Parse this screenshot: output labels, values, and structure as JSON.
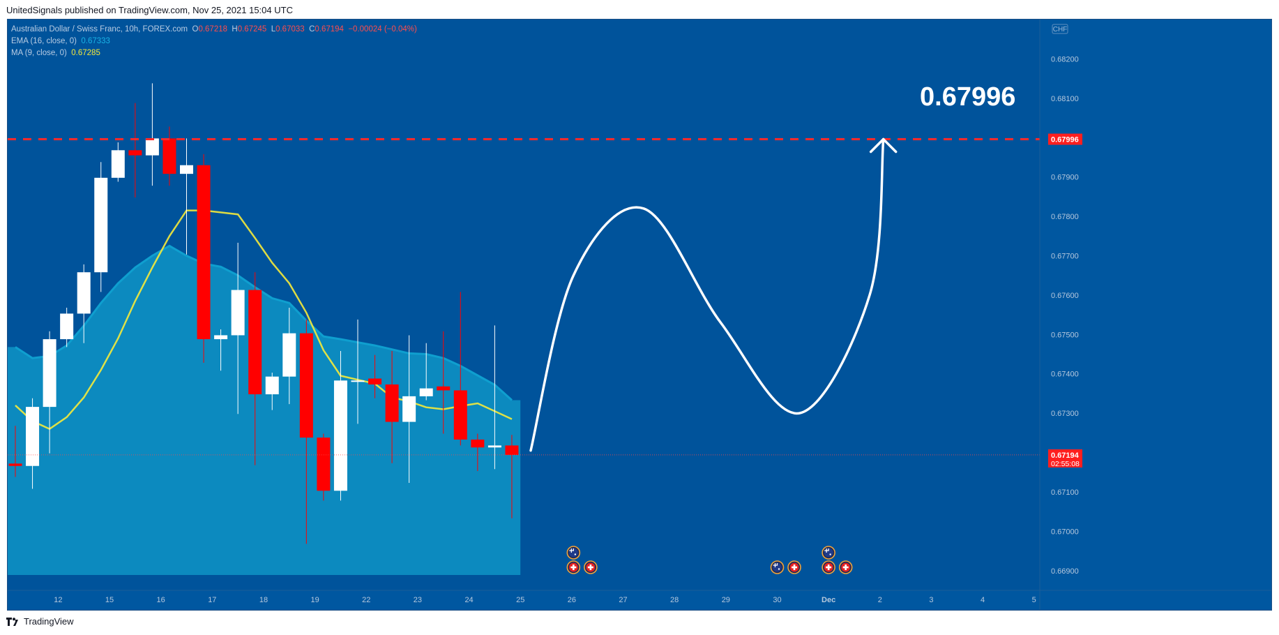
{
  "header": {
    "published": "UnitedSignals published on TradingView.com, Nov 25, 2021 15:04 UTC"
  },
  "footer": {
    "brand": "TradingView",
    "logo_icon": "tradingview-logo-icon"
  },
  "legend": {
    "symbol": "Australian Dollar / Swiss Franc, 10h, FOREX.com",
    "o_label": "O",
    "o": "0.67218",
    "h_label": "H",
    "h": "0.67245",
    "l_label": "L",
    "l": "0.67033",
    "c_label": "C",
    "c": "0.67194",
    "change": "−0.00024 (−0.04%)",
    "ema_label": "EMA (16, close, 0)",
    "ema_value": "0.67333",
    "ma_label": "MA (9, close, 0)",
    "ma_value": "0.67285"
  },
  "colors": {
    "background": "#0057a0",
    "price_panel": "#00539b",
    "candle_up": "#ffffff",
    "candle_down": "#ff0000",
    "ema_line": "#0f9fcf",
    "ema_fill": "#0c8abf",
    "ma_line": "#f5ea3a",
    "target_line": "#ff2a2a",
    "arrow": "#ffffff"
  },
  "chart_data": {
    "type": "candlestick",
    "title": "Australian Dollar / Swiss Franc, 10h, FOREX.com",
    "currency_label": "CHF",
    "ylim": [
      0.6685,
      0.683
    ],
    "y_ticks": [
      "0.68200",
      "0.68100",
      "0.67900",
      "0.67800",
      "0.67700",
      "0.67600",
      "0.67500",
      "0.67400",
      "0.67300",
      "0.67100",
      "0.67000",
      "0.66900"
    ],
    "x_ticks": [
      {
        "label": "12",
        "bar": 2.5
      },
      {
        "label": "15",
        "bar": 5.5
      },
      {
        "label": "16",
        "bar": 8.5
      },
      {
        "label": "17",
        "bar": 11.5
      },
      {
        "label": "18",
        "bar": 14.5
      },
      {
        "label": "19",
        "bar": 17.5
      },
      {
        "label": "22",
        "bar": 20.5
      },
      {
        "label": "23",
        "bar": 23.5
      },
      {
        "label": "24",
        "bar": 26.5
      },
      {
        "label": "25",
        "bar": 29.5
      },
      {
        "label": "26",
        "bar": 32.5
      },
      {
        "label": "27",
        "bar": 35.5
      },
      {
        "label": "28",
        "bar": 38.5
      },
      {
        "label": "29",
        "bar": 41.5
      },
      {
        "label": "30",
        "bar": 44.5
      },
      {
        "label": "Dec",
        "bar": 47.5,
        "bold": true
      },
      {
        "label": "2",
        "bar": 50.5
      },
      {
        "label": "3",
        "bar": 53.5
      },
      {
        "label": "4",
        "bar": 56.5
      },
      {
        "label": "5",
        "bar": 59.5
      }
    ],
    "candles": [
      {
        "o": 0.67172,
        "h": 0.67268,
        "l": 0.67138,
        "c": 0.67166
      },
      {
        "o": 0.67166,
        "h": 0.67338,
        "l": 0.67108,
        "c": 0.67316
      },
      {
        "o": 0.67316,
        "h": 0.67508,
        "l": 0.67198,
        "c": 0.67488
      },
      {
        "o": 0.67488,
        "h": 0.67568,
        "l": 0.67468,
        "c": 0.67553
      },
      {
        "o": 0.67553,
        "h": 0.67678,
        "l": 0.67478,
        "c": 0.67658
      },
      {
        "o": 0.67658,
        "h": 0.67938,
        "l": 0.67608,
        "c": 0.67898
      },
      {
        "o": 0.67898,
        "h": 0.67988,
        "l": 0.67888,
        "c": 0.67968
      },
      {
        "o": 0.67968,
        "h": 0.68088,
        "l": 0.67848,
        "c": 0.67955
      },
      {
        "o": 0.67955,
        "h": 0.68138,
        "l": 0.67878,
        "c": 0.67998
      },
      {
        "o": 0.67998,
        "h": 0.68028,
        "l": 0.67878,
        "c": 0.67908
      },
      {
        "o": 0.67908,
        "h": 0.67998,
        "l": 0.67703,
        "c": 0.6793
      },
      {
        "o": 0.6793,
        "h": 0.67958,
        "l": 0.67428,
        "c": 0.67488
      },
      {
        "o": 0.67488,
        "h": 0.67513,
        "l": 0.67408,
        "c": 0.67498
      },
      {
        "o": 0.67498,
        "h": 0.67733,
        "l": 0.67298,
        "c": 0.67613
      },
      {
        "o": 0.67613,
        "h": 0.67658,
        "l": 0.67168,
        "c": 0.67348
      },
      {
        "o": 0.67348,
        "h": 0.67403,
        "l": 0.67308,
        "c": 0.67393
      },
      {
        "o": 0.67393,
        "h": 0.67568,
        "l": 0.67323,
        "c": 0.67503
      },
      {
        "o": 0.67503,
        "h": 0.67538,
        "l": 0.66968,
        "c": 0.67238
      },
      {
        "o": 0.67238,
        "h": 0.67248,
        "l": 0.67078,
        "c": 0.67103
      },
      {
        "o": 0.67103,
        "h": 0.67458,
        "l": 0.67078,
        "c": 0.67383
      },
      {
        "o": 0.67383,
        "h": 0.67538,
        "l": 0.67273,
        "c": 0.67383
      },
      {
        "o": 0.67388,
        "h": 0.67448,
        "l": 0.67338,
        "c": 0.67373
      },
      {
        "o": 0.67373,
        "h": 0.67458,
        "l": 0.67173,
        "c": 0.67278
      },
      {
        "o": 0.67278,
        "h": 0.67498,
        "l": 0.67123,
        "c": 0.67343
      },
      {
        "o": 0.67343,
        "h": 0.67478,
        "l": 0.67333,
        "c": 0.67363
      },
      {
        "o": 0.67368,
        "h": 0.67508,
        "l": 0.67248,
        "c": 0.67358
      },
      {
        "o": 0.67358,
        "h": 0.67608,
        "l": 0.67218,
        "c": 0.67233
      },
      {
        "o": 0.67233,
        "h": 0.67248,
        "l": 0.67153,
        "c": 0.67213
      },
      {
        "o": 0.67213,
        "h": 0.67523,
        "l": 0.67158,
        "c": 0.67218
      },
      {
        "o": 0.67218,
        "h": 0.67245,
        "l": 0.67033,
        "c": 0.67194
      }
    ],
    "series": [
      {
        "name": "EMA (16, close, 0)",
        "values": [
          0.67468,
          0.6744,
          0.67445,
          0.67472,
          0.67522,
          0.6758,
          0.6763,
          0.6767,
          0.677,
          0.67725,
          0.677,
          0.6768,
          0.67672,
          0.6765,
          0.6762,
          0.67592,
          0.6758,
          0.67535,
          0.67495,
          0.67488,
          0.6748,
          0.67472,
          0.67462,
          0.67452,
          0.6745,
          0.6744,
          0.6742,
          0.67396,
          0.67372,
          0.67333
        ]
      },
      {
        "name": "MA (9, close, 0)",
        "values": [
          0.6732,
          0.6728,
          0.6726,
          0.6729,
          0.6734,
          0.6741,
          0.6749,
          0.67585,
          0.6767,
          0.6775,
          0.67815,
          0.67815,
          0.6781,
          0.67805,
          0.67745,
          0.67682,
          0.6763,
          0.67555,
          0.6746,
          0.67395,
          0.67385,
          0.67375,
          0.6734,
          0.6733,
          0.67315,
          0.6731,
          0.67318,
          0.67325,
          0.67305,
          0.67285
        ]
      }
    ],
    "current_price": {
      "value": 0.67194,
      "label": "0.67194",
      "countdown": "02:55:08"
    },
    "target": {
      "value": 0.67996,
      "label": "0.67996",
      "annotation": "0.67996"
    },
    "projection_path": [
      {
        "bar": 30.1,
        "price": 0.67205
      },
      {
        "bar": 32.6,
        "price": 0.6765
      },
      {
        "bar": 36.7,
        "price": 0.6782
      },
      {
        "bar": 41.2,
        "price": 0.6753
      },
      {
        "bar": 45.8,
        "price": 0.673
      },
      {
        "bar": 49.9,
        "price": 0.676
      },
      {
        "bar": 50.7,
        "price": 0.67996
      }
    ],
    "events": [
      {
        "bar": 32.6,
        "row": 1,
        "flag": "australia-flag-icon"
      },
      {
        "bar": 32.6,
        "row": 0,
        "flag": "switzerland-flag-icon"
      },
      {
        "bar": 33.6,
        "row": 0,
        "flag": "switzerland-flag-icon"
      },
      {
        "bar": 44.5,
        "row": 0,
        "flag": "australia-flag-icon"
      },
      {
        "bar": 45.5,
        "row": 0,
        "flag": "switzerland-flag-icon"
      },
      {
        "bar": 47.5,
        "row": 1,
        "flag": "australia-flag-icon"
      },
      {
        "bar": 47.5,
        "row": 0,
        "flag": "switzerland-flag-icon"
      },
      {
        "bar": 48.5,
        "row": 0,
        "flag": "switzerland-flag-icon"
      }
    ]
  }
}
